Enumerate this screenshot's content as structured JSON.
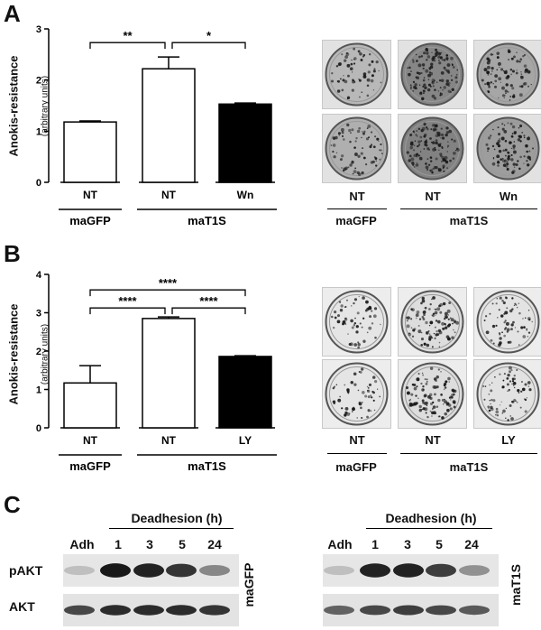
{
  "panel_a": {
    "letter": "A",
    "chart_data": {
      "type": "bar",
      "categories": [
        "NT",
        "NT",
        "Wn"
      ],
      "values": [
        1.18,
        2.22,
        1.53
      ],
      "errors": [
        0.02,
        0.23,
        0.02
      ],
      "fills": [
        "#ffffff",
        "#ffffff",
        "#000000"
      ],
      "ylim": [
        0,
        3
      ],
      "yticks": [
        0,
        1,
        2,
        3
      ],
      "ylabel": "Anokis-resistance",
      "ylabel_sub": "(arbitrary units)",
      "significance": [
        {
          "from": 0,
          "to": 1,
          "label": "**"
        },
        {
          "from": 1,
          "to": 2,
          "label": "*"
        }
      ],
      "groups": [
        {
          "label": "maGFP",
          "bars": [
            0
          ]
        },
        {
          "label": "maT1S",
          "bars": [
            1,
            2
          ]
        }
      ]
    },
    "photo_labels": [
      "NT",
      "NT",
      "Wn"
    ],
    "photo_groups": [
      "maGFP",
      "maT1S"
    ]
  },
  "panel_b": {
    "letter": "B",
    "chart_data": {
      "type": "bar",
      "categories": [
        "NT",
        "NT",
        "LY"
      ],
      "values": [
        1.17,
        2.85,
        1.86
      ],
      "errors": [
        0.45,
        0.04,
        0.02
      ],
      "fills": [
        "#ffffff",
        "#ffffff",
        "#000000"
      ],
      "ylim": [
        0,
        4
      ],
      "yticks": [
        0,
        1,
        2,
        3,
        4
      ],
      "ylabel": "Anokis-resistance",
      "ylabel_sub": "(arbitrary units)",
      "significance": [
        {
          "from": 0,
          "to": 2,
          "label": "****"
        },
        {
          "from": 0,
          "to": 1,
          "label": "****"
        },
        {
          "from": 1,
          "to": 2,
          "label": "****"
        }
      ],
      "groups": [
        {
          "label": "maGFP",
          "bars": [
            0
          ]
        },
        {
          "label": "maT1S",
          "bars": [
            1,
            2
          ]
        }
      ]
    },
    "photo_labels": [
      "NT",
      "NT",
      "LY"
    ],
    "photo_groups": [
      "maGFP",
      "maT1S"
    ]
  },
  "panel_c": {
    "letter": "C",
    "header": "Deadhesion (h)",
    "lanes": [
      "Adh",
      "1",
      "3",
      "5",
      "24"
    ],
    "rows": [
      "pAKT",
      "AKT"
    ],
    "blots": [
      {
        "cell_line": "maGFP",
        "pakt_intensity": [
          0.05,
          0.95,
          0.9,
          0.8,
          0.35
        ],
        "akt_intensity": [
          0.7,
          0.85,
          0.85,
          0.85,
          0.8
        ]
      },
      {
        "cell_line": "maT1S",
        "pakt_intensity": [
          0.05,
          0.9,
          0.9,
          0.75,
          0.3
        ],
        "akt_intensity": [
          0.55,
          0.7,
          0.75,
          0.7,
          0.6
        ]
      }
    ]
  }
}
